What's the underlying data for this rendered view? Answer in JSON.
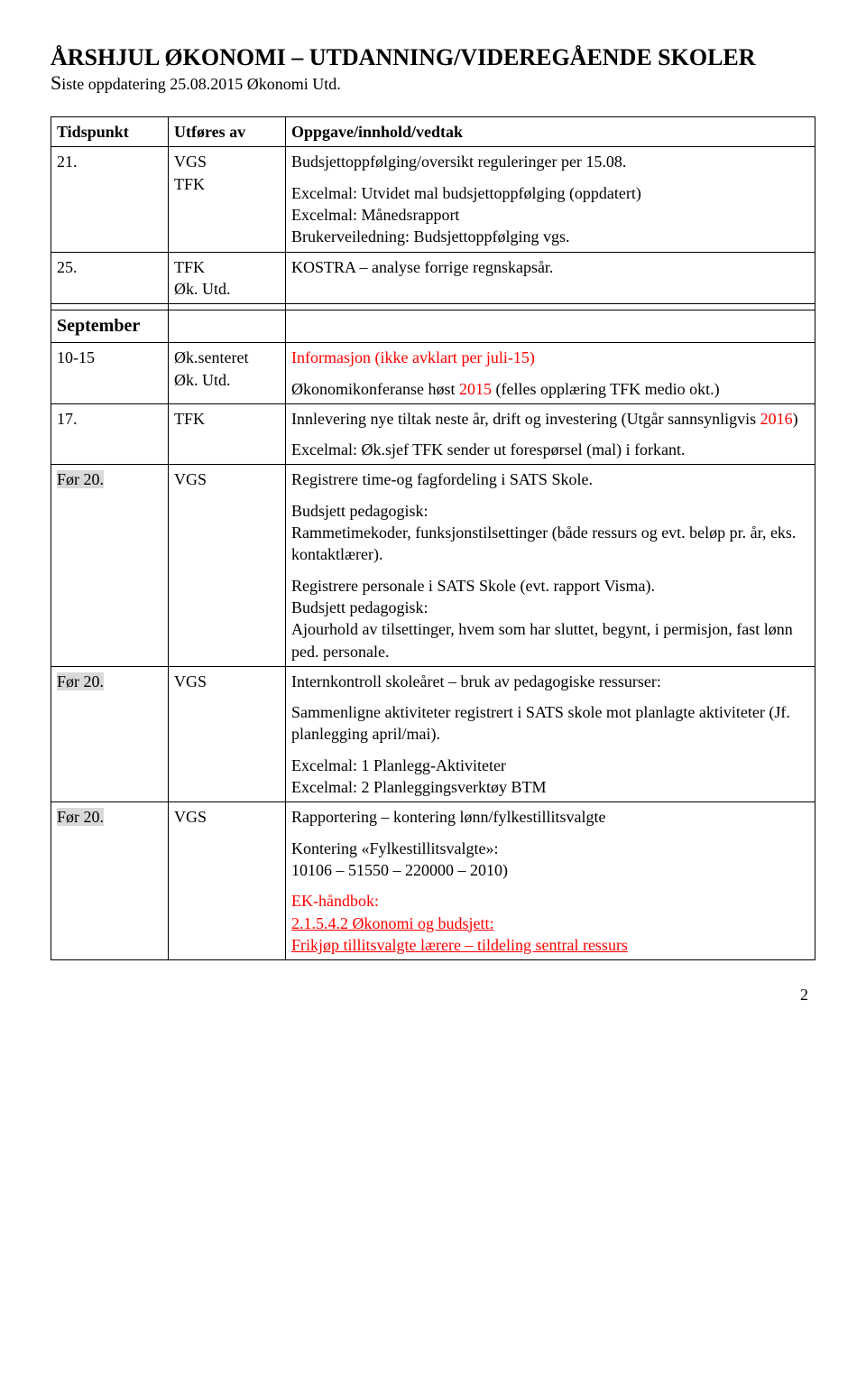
{
  "page": {
    "title": "ÅRSHJUL ØKONOMI – UTDANNING/VIDEREGÅENDE SKOLER",
    "subtitle_prefix": "S",
    "subtitle_rest": "iste oppdatering 25.08.2015 Økonomi Utd.",
    "page_number": "2"
  },
  "header": {
    "c1": "Tidspunkt",
    "c2": "Utføres av",
    "c3": "Oppgave/innhold/vedtak"
  },
  "rows": {
    "r1": {
      "c1": "21.",
      "c2": "VGS\nTFK",
      "c3a": "Budsjettoppfølging/oversikt reguleringer per 15.08.",
      "c3b": "Excelmal: Utvidet mal budsjettoppfølging (oppdatert)\nExcelmal: Månedsrapport\nBrukerveiledning: Budsjettoppfølging vgs."
    },
    "r2": {
      "c1": "25.",
      "c2": "TFK\nØk. Utd.",
      "c3": "KOSTRA – analyse forrige regnskapsår."
    },
    "section": "September",
    "r3": {
      "c1": "10-15",
      "c2": "Øk.senteret\nØk. Utd.",
      "c3a": "Informasjon (ikke avklart per juli-15)",
      "c3b_a": "Økonomikonferanse høst ",
      "c3b_b": "2015",
      "c3b_c": " (felles opplæring TFK medio okt.)"
    },
    "r4": {
      "c1": "17.",
      "c2": "TFK",
      "c3a_a": "Innlevering nye tiltak neste år, drift og investering (Utgår sannsynligvis ",
      "c3a_b": "2016",
      "c3a_c": ")",
      "c3b": "Excelmal: Øk.sjef TFK sender ut forespørsel (mal) i forkant."
    },
    "r5": {
      "c1": "Før 20.",
      "c2": "VGS",
      "c3a": "Registrere time-og fagfordeling i SATS Skole.",
      "c3b": "Budsjett pedagogisk:\nRammetimekoder, funksjonstilsettinger (både ressurs og evt. beløp pr. år, eks. kontaktlærer).",
      "c3c": "Registrere personale i SATS Skole (evt. rapport Visma).\nBudsjett pedagogisk:\nAjourhold av tilsettinger, hvem som har sluttet, begynt, i permisjon, fast lønn ped. personale."
    },
    "r6": {
      "c1": "Før 20.",
      "c2": "VGS",
      "c3a": "Internkontroll skoleåret – bruk av pedagogiske ressurser:",
      "c3b": "Sammenligne aktiviteter registrert i SATS skole mot planlagte aktiviteter (Jf. planlegging april/mai).",
      "c3c": "Excelmal: 1 Planlegg-Aktiviteter\nExcelmal: 2 Planleggingsverktøy BTM"
    },
    "r7": {
      "c1": "Før 20.",
      "c2": "VGS",
      "c3a": "Rapportering – kontering lønn/fylkestillitsvalgte",
      "c3b": "Kontering «Fylkestillitsvalgte»:\n10106 – 51550 – 220000 – 2010)",
      "c3c": "EK-håndbok:",
      "c3d": "2.1.5.4.2 Økonomi og budsjett:",
      "c3e": "Frikjøp tillitsvalgte lærere – tildeling sentral ressurs"
    }
  }
}
